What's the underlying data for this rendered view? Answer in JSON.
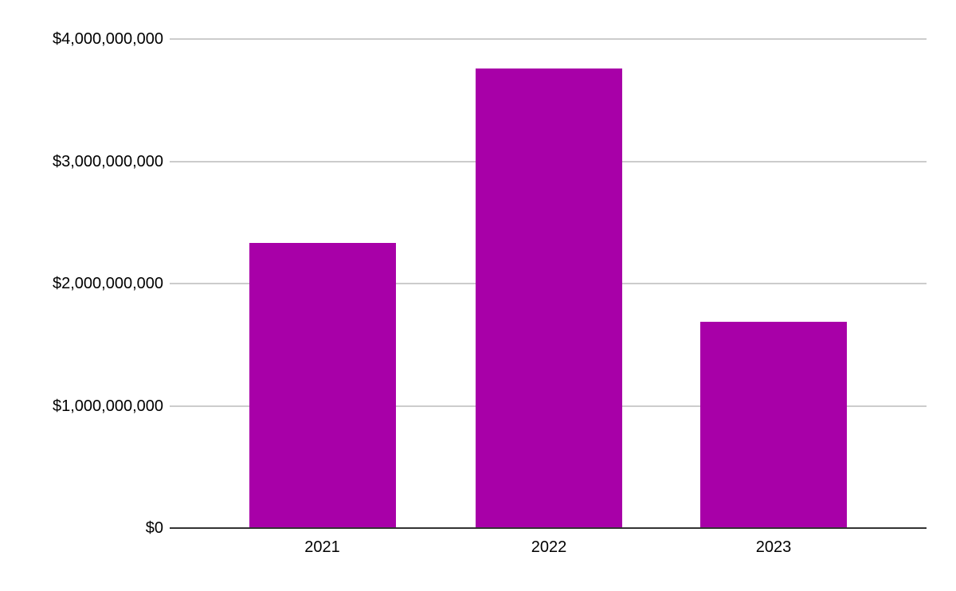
{
  "chart_data": {
    "type": "bar",
    "title": "",
    "xlabel": "",
    "ylabel": "",
    "categories": [
      "2021",
      "2022",
      "2023"
    ],
    "series": [
      {
        "name": "value",
        "values": [
          2330000000,
          3760000000,
          1690000000
        ]
      }
    ],
    "y_ticks": [
      {
        "value": 0,
        "label": "$0"
      },
      {
        "value": 1000000000,
        "label": "$1,000,000,000"
      },
      {
        "value": 2000000000,
        "label": "$2,000,000,000"
      },
      {
        "value": 3000000000,
        "label": "$3,000,000,000"
      },
      {
        "value": 4000000000,
        "label": "$4,000,000,000"
      }
    ],
    "ylim": [
      0,
      4000000000
    ],
    "grid": true,
    "legend": "none",
    "colors": {
      "bar": "#A800A8",
      "gridline": "#CCCCCC",
      "axis_line": "#333333",
      "tick_text": "#000000",
      "background": "#FFFFFF"
    }
  }
}
